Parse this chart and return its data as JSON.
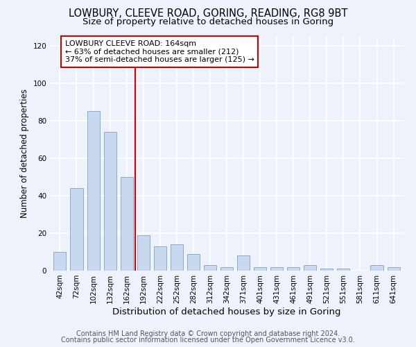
{
  "title1": "LOWBURY, CLEEVE ROAD, GORING, READING, RG8 9BT",
  "title2": "Size of property relative to detached houses in Goring",
  "xlabel": "Distribution of detached houses by size in Goring",
  "ylabel": "Number of detached properties",
  "categories": [
    "42sqm",
    "72sqm",
    "102sqm",
    "132sqm",
    "162sqm",
    "192sqm",
    "222sqm",
    "252sqm",
    "282sqm",
    "312sqm",
    "342sqm",
    "371sqm",
    "401sqm",
    "431sqm",
    "461sqm",
    "491sqm",
    "521sqm",
    "551sqm",
    "581sqm",
    "611sqm",
    "641sqm"
  ],
  "values": [
    10,
    44,
    85,
    74,
    50,
    19,
    13,
    14,
    9,
    3,
    2,
    8,
    2,
    2,
    2,
    3,
    1,
    1,
    0,
    3,
    2
  ],
  "bar_color": "#c8d8ee",
  "bar_edge_color": "#7aa4cc",
  "bar_width": 0.75,
  "ylim": [
    0,
    125
  ],
  "yticks": [
    0,
    20,
    40,
    60,
    80,
    100,
    120
  ],
  "vline_x": 4.5,
  "vline_color": "#cc0000",
  "annotation_text": "LOWBURY CLEEVE ROAD: 164sqm\n← 63% of detached houses are smaller (212)\n37% of semi-detached houses are larger (125) →",
  "annotation_box_color": "#ffffff",
  "annotation_box_edge": "#cc0000",
  "footer1": "Contains HM Land Registry data © Crown copyright and database right 2024.",
  "footer2": "Contains public sector information licensed under the Open Government Licence v3.0.",
  "background_color": "#eef2fa",
  "grid_color": "#ffffff",
  "title1_fontsize": 10.5,
  "title2_fontsize": 9.5,
  "xlabel_fontsize": 9.5,
  "ylabel_fontsize": 8.5,
  "tick_fontsize": 7.5,
  "footer_fontsize": 7,
  "annot_fontsize": 8
}
